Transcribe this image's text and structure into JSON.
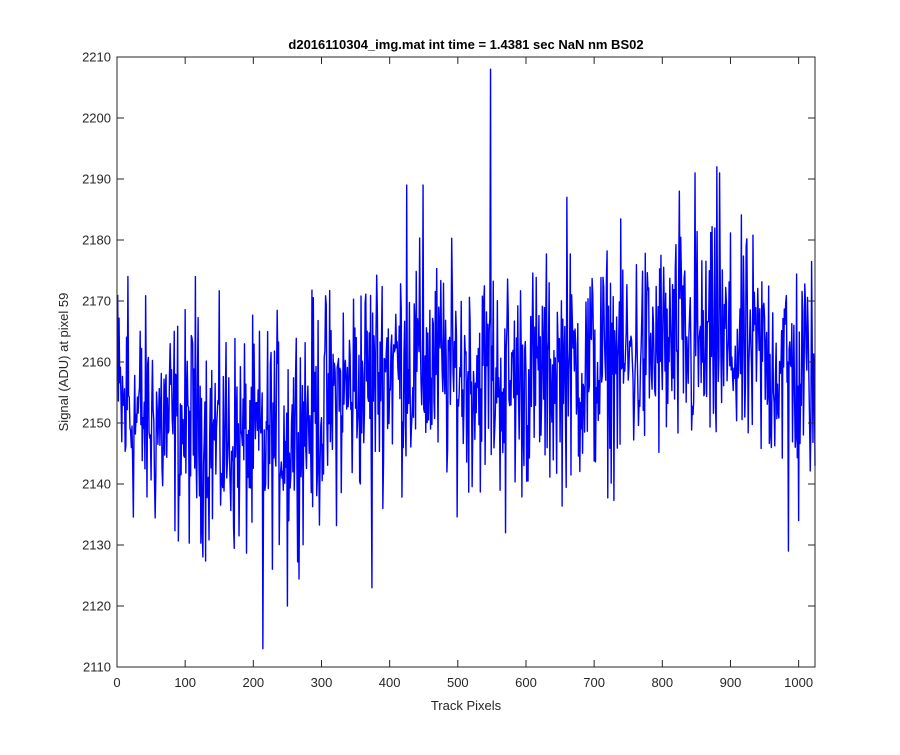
{
  "chart_data": {
    "type": "line",
    "title": "d2016110304_img.mat int time = 1.4381 sec  NaN nm BS02",
    "xlabel": "Track Pixels",
    "ylabel": "Signal (ADU) at pixel 59",
    "xlim": [
      0,
      1024
    ],
    "ylim": [
      2110,
      2210
    ],
    "xticks": [
      0,
      100,
      200,
      300,
      400,
      500,
      600,
      700,
      800,
      900,
      1000
    ],
    "yticks": [
      2110,
      2120,
      2130,
      2140,
      2150,
      2160,
      2170,
      2180,
      2190,
      2200,
      2210
    ],
    "grid": false,
    "legend": "none",
    "series": [
      {
        "color": "#0000ff",
        "x_start": 1,
        "x_step": 1,
        "noise_amplitude": 9,
        "trend_anchors_x": [
          0,
          100,
          200,
          300,
          400,
          500,
          600,
          700,
          800,
          900,
          1024
        ],
        "trend_anchors_y": [
          2152,
          2149,
          2146,
          2152,
          2160,
          2158,
          2157,
          2159,
          2162,
          2162,
          2158
        ],
        "spikes": [
          {
            "x": 1,
            "y": 2171
          },
          {
            "x": 16,
            "y": 2174
          },
          {
            "x": 115,
            "y": 2174
          },
          {
            "x": 214,
            "y": 2113
          },
          {
            "x": 250,
            "y": 2120
          },
          {
            "x": 374,
            "y": 2123
          },
          {
            "x": 425,
            "y": 2189
          },
          {
            "x": 449,
            "y": 2189
          },
          {
            "x": 548,
            "y": 2208
          },
          {
            "x": 570,
            "y": 2132
          },
          {
            "x": 660,
            "y": 2187
          },
          {
            "x": 825,
            "y": 2188
          },
          {
            "x": 848,
            "y": 2191
          },
          {
            "x": 880,
            "y": 2192
          },
          {
            "x": 884,
            "y": 2191
          },
          {
            "x": 985,
            "y": 2129
          },
          {
            "x": 1000,
            "y": 2134
          },
          {
            "x": 1024,
            "y": 2143
          }
        ]
      }
    ]
  }
}
